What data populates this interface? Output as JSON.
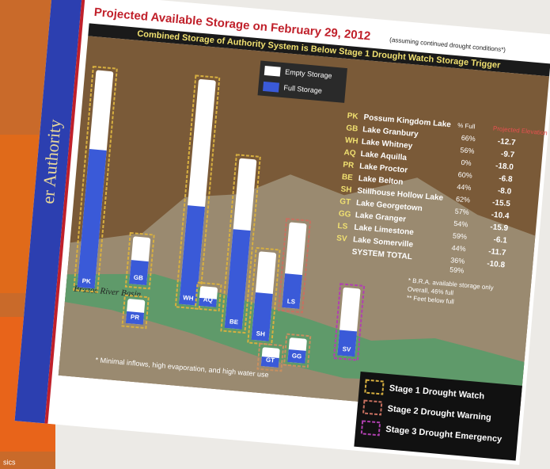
{
  "side_label": "er Authority",
  "corner_text": "sics",
  "title": "Projected Available Storage on February 29, 2012",
  "title_note": "(assuming continued drought conditions*)",
  "banner": "Combined Storage of Authority System is Below Stage 1 Drought Watch Storage Trigger",
  "legend": {
    "empty": "Empty Storage",
    "full": "Full Storage"
  },
  "table": {
    "headers": [
      "% Full",
      "Projected Elevation"
    ],
    "rows": [
      {
        "code": "PK",
        "name": "Possum Kingdom Lake"
      },
      {
        "code": "GB",
        "name": "Lake Granbury",
        "pct": "66%",
        "elev": "-12.7"
      },
      {
        "code": "WH",
        "name": "Lake Whitney",
        "pct": "56%",
        "elev": "-9.7"
      },
      {
        "code": "AQ",
        "name": "Lake Aquilla",
        "pct": "0%",
        "elev": "-18.0"
      },
      {
        "code": "PR",
        "name": "Lake Proctor",
        "pct": "60%",
        "elev": "-6.8"
      },
      {
        "code": "BE",
        "name": "Lake Belton",
        "pct": "44%",
        "elev": "-8.0"
      },
      {
        "code": "SH",
        "name": "Stillhouse Hollow Lake",
        "pct": "62%",
        "elev": "-15.5"
      },
      {
        "code": "GT",
        "name": "Lake Georgetown",
        "pct": "57%",
        "elev": "-10.4"
      },
      {
        "code": "GG",
        "name": "Lake Granger",
        "pct": "54%",
        "elev": "-15.9"
      },
      {
        "code": "LS",
        "name": "Lake Limestone",
        "pct": "59%",
        "elev": "-6.1"
      },
      {
        "code": "SV",
        "name": "Lake Somerville",
        "pct": "44%",
        "elev": "-11.7"
      }
    ],
    "total": {
      "label": "SYSTEM TOTAL",
      "pct": "36%",
      "elev": "-10.8",
      "extra": "59%"
    }
  },
  "notes": [
    "* B.R.A. available storage only",
    "Overall, 46% full",
    "** Feet below full"
  ],
  "bar_labels": [
    "PK",
    "GB",
    "PR",
    "WH",
    "AQ",
    "BE",
    "SH",
    "GT",
    "LS",
    "GG",
    "SV"
  ],
  "map_label": "Brazos River Basin",
  "footnote": "* Minimal inflows, high evaporation, and high water use",
  "stages": [
    "Stage 1 Drought Watch",
    "Stage 2 Drought Warning",
    "Stage 3 Drought Emergency"
  ]
}
